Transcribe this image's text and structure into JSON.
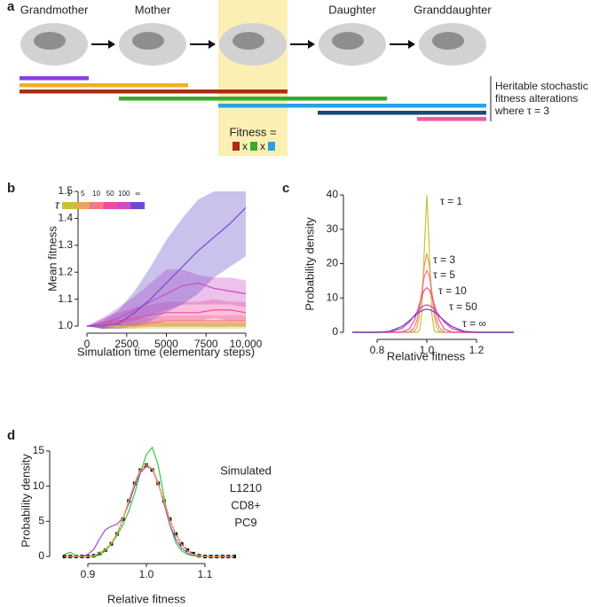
{
  "diagram": {
    "label": "a",
    "cells": [
      "Grandmother",
      "Mother",
      null,
      "Daughter",
      "Granddaughter"
    ],
    "note": [
      "Heritable stochastic",
      "fitness alterations",
      "where τ = 3"
    ],
    "fitness_label": "Fitness =",
    "operators": [
      "x",
      "x"
    ]
  },
  "chart_data": [
    {
      "label": "b",
      "type": "line",
      "x_label": "Simulation time (elementary steps)",
      "y_label": "Mean fitness",
      "legend_title": "τ",
      "x": [
        0,
        1000,
        2000,
        3000,
        4000,
        5000,
        6000,
        7000,
        8000,
        9000,
        10000
      ],
      "xlim": [
        0,
        10000
      ],
      "xticks": [
        0,
        2500,
        5000,
        7500,
        {
          "value": 10000,
          "label": "10,000"
        }
      ],
      "ylim": [
        1,
        1.5
      ],
      "yticks": [
        {
          "value": 1,
          "label": "1.0"
        },
        1.1,
        1.2,
        1.3,
        1.4,
        1.5
      ],
      "series": [
        {
          "name": "1",
          "color": "#c8c23a",
          "values": [
            1,
            1,
            1,
            1,
            1,
            1,
            1,
            1,
            1,
            1,
            1
          ],
          "lower": [
            1,
            0.99,
            0.99,
            0.99,
            0.99,
            0.99,
            0.99,
            0.99,
            0.99,
            0.99,
            0.99
          ],
          "upper": [
            1,
            1.01,
            1.01,
            1.01,
            1.01,
            1.01,
            1.01,
            1.01,
            1.01,
            1.01,
            1.01
          ]
        },
        {
          "name": "5",
          "color": "#eda35a",
          "values": [
            1,
            1,
            1,
            1,
            1.01,
            1.01,
            1.01,
            1.01,
            1.01,
            1.01,
            1.01
          ],
          "lower": [
            1,
            0.99,
            0.99,
            0.99,
            1,
            1,
            1,
            1,
            1,
            1,
            1
          ],
          "upper": [
            1,
            1.01,
            1.01,
            1.01,
            1.02,
            1.02,
            1.02,
            1.02,
            1.02,
            1.02,
            1.02
          ]
        },
        {
          "name": "10",
          "color": "#f07c86",
          "values": [
            1,
            1,
            1.01,
            1.01,
            1.01,
            1.02,
            1.02,
            1.02,
            1.02,
            1.02,
            1.02
          ],
          "lower": [
            1,
            0.99,
            1,
            1,
            1,
            1,
            1,
            1,
            1,
            1,
            1
          ],
          "upper": [
            1,
            1.01,
            1.02,
            1.03,
            1.03,
            1.04,
            1.04,
            1.04,
            1.04,
            1.04,
            1.04
          ]
        },
        {
          "name": "50",
          "color": "#f04aa0",
          "values": [
            1,
            1.01,
            1.02,
            1.03,
            1.04,
            1.05,
            1.05,
            1.05,
            1.06,
            1.06,
            1.05
          ],
          "lower": [
            1,
            0.99,
            1,
            1,
            1.01,
            1.02,
            1.02,
            1.02,
            1.03,
            1.02,
            1.02
          ],
          "upper": [
            1,
            1.03,
            1.05,
            1.07,
            1.08,
            1.09,
            1.09,
            1.09,
            1.1,
            1.09,
            1.09
          ]
        },
        {
          "name": "100",
          "color": "#c84cc4",
          "values": [
            1,
            1.01,
            1.03,
            1.06,
            1.09,
            1.12,
            1.15,
            1.16,
            1.14,
            1.13,
            1.12
          ],
          "lower": [
            1,
            0.99,
            1,
            1.02,
            1.04,
            1.06,
            1.08,
            1.08,
            1.08,
            1.08,
            1.07
          ],
          "upper": [
            1,
            1.03,
            1.07,
            1.11,
            1.16,
            1.21,
            1.21,
            1.19,
            1.18,
            1.18,
            1.17
          ]
        },
        {
          "name": "∞",
          "color": "#6a4ccc",
          "values": [
            1,
            1,
            1.01,
            1.05,
            1.1,
            1.16,
            1.22,
            1.28,
            1.33,
            1.38,
            1.44
          ],
          "lower": [
            1,
            0.99,
            0.99,
            1,
            1.02,
            1.05,
            1.08,
            1.12,
            1.18,
            1.22,
            1.26
          ],
          "upper": [
            1,
            1.02,
            1.06,
            1.13,
            1.22,
            1.32,
            1.4,
            1.47,
            1.5,
            1.5,
            1.5
          ]
        }
      ]
    },
    {
      "label": "c",
      "type": "line",
      "x_label": "Relative fitness",
      "y_label": "Probability density",
      "x": [
        0.7,
        0.8,
        0.85,
        0.9,
        0.93,
        0.95,
        0.96,
        0.97,
        0.98,
        0.99,
        1,
        1.01,
        1.02,
        1.03,
        1.04,
        1.05,
        1.07,
        1.1,
        1.15,
        1.2,
        1.35
      ],
      "xlim": [
        0.7,
        1.35
      ],
      "xticks": [
        0.8,
        {
          "value": 1,
          "label": "1.0"
        },
        1.2
      ],
      "ylim": [
        0,
        40
      ],
      "yticks": [
        0,
        10,
        20,
        30,
        40
      ],
      "series": [
        {
          "name": "τ = 1",
          "color": "#c8c23a",
          "values": [
            0,
            0,
            0,
            0,
            0,
            0,
            0,
            0.4,
            5.4,
            24.3,
            40,
            24.3,
            5.4,
            0.4,
            0,
            0,
            0,
            0,
            0,
            0,
            0
          ]
        },
        {
          "name": "τ = 3",
          "color": "#e6a050",
          "values": [
            0,
            0,
            0,
            0,
            0,
            0.3,
            1.4,
            4.9,
            11.5,
            19.4,
            23,
            19.4,
            11.5,
            4.9,
            1.4,
            0.3,
            0,
            0,
            0,
            0,
            0
          ]
        },
        {
          "name": "τ = 5",
          "color": "#f07a8c",
          "values": [
            0,
            0,
            0,
            0.1,
            0.1,
            1.4,
            3.5,
            7.1,
            11.9,
            16.3,
            18,
            16.3,
            11.9,
            7.1,
            3.5,
            1.4,
            0.1,
            0,
            0,
            0,
            0
          ]
        },
        {
          "name": "τ = 10",
          "color": "#ee4c8c",
          "values": [
            0,
            0,
            0,
            0.1,
            1,
            3.5,
            5.7,
            8.1,
            10.6,
            12.3,
            13,
            12.3,
            10.6,
            8.1,
            5.7,
            3.5,
            1,
            0.1,
            0,
            0,
            0
          ]
        },
        {
          "name": "τ = 50",
          "color": "#d63fb0",
          "values": [
            0,
            0,
            0.1,
            1.1,
            3,
            4.9,
            5.8,
            6.7,
            7.4,
            7.8,
            8,
            7.8,
            7.4,
            6.7,
            5.8,
            4.9,
            3,
            1.1,
            0.1,
            0,
            0
          ]
        },
        {
          "name": "τ = ∞",
          "color": "#6a40d0",
          "values": [
            0,
            0,
            0.3,
            1.7,
            3.4,
            4.7,
            5.4,
            5.9,
            6.3,
            6.6,
            6.7,
            6.6,
            6.3,
            5.9,
            5.4,
            4.7,
            3.4,
            1.7,
            0.3,
            0,
            0
          ]
        }
      ]
    },
    {
      "label": "d",
      "type": "line",
      "x_label": "Relative fitness",
      "y_label": "Probability density",
      "x": [
        0.86,
        0.87,
        0.88,
        0.89,
        0.9,
        0.91,
        0.92,
        0.93,
        0.94,
        0.95,
        0.96,
        0.97,
        0.98,
        0.99,
        1,
        1.01,
        1.02,
        1.03,
        1.04,
        1.05,
        1.06,
        1.07,
        1.08,
        1.09,
        1.1,
        1.11,
        1.12,
        1.13,
        1.14,
        1.15
      ],
      "xlim": [
        0.85,
        1.15
      ],
      "xticks": [
        0.9,
        {
          "value": 1,
          "label": "1.0"
        },
        1.1
      ],
      "ylim": [
        0,
        16
      ],
      "yticks": [
        0,
        5,
        10,
        15
      ],
      "series": [
        {
          "name": "Simulated",
          "color": "#111111",
          "marker": "square",
          "dashed": true,
          "values": [
            0,
            0,
            0,
            0,
            0,
            0.1,
            0.4,
            0.9,
            1.8,
            3.2,
            5.3,
            7.9,
            10.4,
            12.3,
            13,
            12.3,
            10.4,
            7.9,
            5.3,
            3.2,
            1.8,
            0.9,
            0.4,
            0.1,
            0,
            0,
            0,
            0,
            0,
            0
          ]
        },
        {
          "name": "L1210",
          "color": "#3cc43c",
          "values": [
            0.3,
            0.6,
            0.1,
            0,
            0,
            0,
            0.2,
            0.8,
            1.8,
            3,
            4.5,
            6.5,
            9,
            12,
            14.5,
            15.5,
            13,
            8.5,
            4.5,
            2,
            0.8,
            0.3,
            0.1,
            0,
            0,
            0,
            0,
            0,
            0,
            0
          ]
        },
        {
          "name": "CD8+",
          "color": "#9b4fe0",
          "values": [
            0,
            0,
            0,
            0,
            0.3,
            1,
            2.5,
            3.8,
            4.3,
            4.6,
            5.5,
            7.5,
            10,
            12,
            12.8,
            12.5,
            10.5,
            7.5,
            4.5,
            2.5,
            1.2,
            0.5,
            0.2,
            0.1,
            0,
            0,
            0,
            0,
            0,
            0
          ]
        },
        {
          "name": "PC9",
          "color": "#f2a040",
          "values": [
            0,
            0,
            0,
            0,
            0,
            0.1,
            0.5,
            1,
            1.9,
            3.3,
            5.4,
            8,
            10.5,
            12.4,
            13.1,
            12.4,
            10.3,
            7.8,
            5.2,
            3.1,
            1.7,
            0.8,
            0.3,
            0.1,
            0,
            0,
            0,
            0,
            0,
            0
          ]
        }
      ]
    }
  ]
}
